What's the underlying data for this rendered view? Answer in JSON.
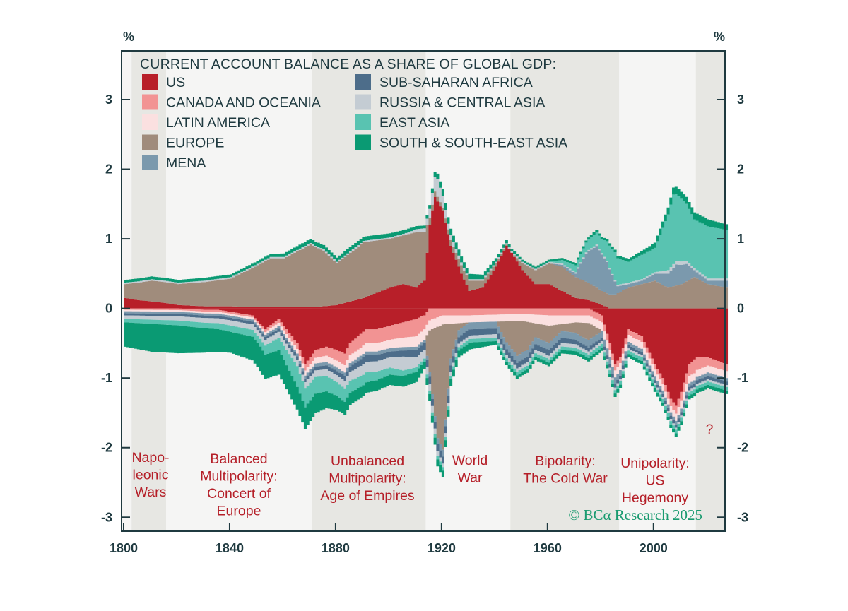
{
  "chart_data": {
    "type": "area",
    "title": "CURRENT ACCOUNT BALANCE AS A SHARE OF GLOBAL GDP:",
    "unit_left": "%",
    "unit_right": "%",
    "xlim": [
      1800,
      2027
    ],
    "ylim": [
      -3.2,
      3.7
    ],
    "x_ticks": [
      "1800",
      "1840",
      "1880",
      "1920",
      "1960",
      "2000"
    ],
    "x_tick_values": [
      1800,
      1840,
      1880,
      1920,
      1960,
      2000
    ],
    "y_ticks": [
      "3",
      "2",
      "1",
      "0",
      "-1",
      "-2",
      "-3"
    ],
    "y_tick_values": [
      3,
      2,
      1,
      0,
      -1,
      -2,
      -3
    ],
    "legend": [
      {
        "name": "US",
        "color": "#b81f29"
      },
      {
        "name": "CANADA AND OCEANIA",
        "color": "#f29393"
      },
      {
        "name": "LATIN AMERICA",
        "color": "#fbe0e0"
      },
      {
        "name": "EUROPE",
        "color": "#a08c7c"
      },
      {
        "name": "MENA",
        "color": "#7b99ad"
      },
      {
        "name": "SUB-SAHARAN AFRICA",
        "color": "#4d6d8a"
      },
      {
        "name": "RUSSIA & CENTRAL ASIA",
        "color": "#c4ccd3"
      },
      {
        "name": "EAST ASIA",
        "color": "#59c3b1"
      },
      {
        "name": "SOUTH & SOUTH-EAST ASIA",
        "color": "#0a9a73"
      }
    ],
    "eras": [
      {
        "lines": [
          "Napo-",
          "leonic",
          "Wars"
        ],
        "start": 1803,
        "end": 1816,
        "shade": true
      },
      {
        "lines": [
          "Balanced",
          "Multipolarity:",
          "Concert of",
          "Europe"
        ],
        "start": 1816,
        "end": 1871,
        "shade": false
      },
      {
        "lines": [
          "Unbalanced",
          "Multipolarity:",
          "Age of Empires"
        ],
        "start": 1871,
        "end": 1914,
        "shade": true
      },
      {
        "lines": [
          "World",
          "War"
        ],
        "start": 1914,
        "end": 1946,
        "shade": false
      },
      {
        "lines": [
          "Bipolarity:",
          "The Cold War"
        ],
        "start": 1946,
        "end": 1987,
        "shade": true
      },
      {
        "lines": [
          "Unipolarity:",
          "US",
          "Hegemony"
        ],
        "start": 1987,
        "end": 2016,
        "shade": false
      },
      {
        "lines": [
          "?"
        ],
        "start": 2016,
        "end": 2027,
        "shade": true
      }
    ],
    "positive_series": [
      {
        "name": "US",
        "color": "#b81f29",
        "x": [
          1800,
          1805,
          1810,
          1815,
          1820,
          1830,
          1840,
          1850,
          1860,
          1866,
          1872,
          1880,
          1890,
          1900,
          1905,
          1910,
          1913,
          1915,
          1917,
          1920,
          1923,
          1927,
          1930,
          1935,
          1940,
          1944,
          1946,
          1950,
          1955,
          1960,
          1965,
          1970,
          1975,
          1980,
          1983,
          2000,
          2027
        ],
        "values": [
          0.15,
          0.12,
          0.1,
          0.08,
          0.05,
          0.03,
          0.03,
          0.02,
          0.02,
          0.02,
          0.02,
          0.05,
          0.15,
          0.3,
          0.35,
          0.3,
          0.4,
          1.2,
          1.6,
          1.4,
          0.9,
          0.5,
          0.25,
          0.3,
          0.6,
          0.9,
          0.8,
          0.55,
          0.35,
          0.35,
          0.25,
          0.15,
          0.12,
          0.05,
          0,
          0,
          0
        ]
      },
      {
        "name": "EUROPE",
        "color": "#a08c7c",
        "x": [
          1800,
          1810,
          1820,
          1830,
          1840,
          1845,
          1850,
          1855,
          1860,
          1865,
          1870,
          1875,
          1880,
          1885,
          1890,
          1895,
          1900,
          1905,
          1910,
          1913,
          1915,
          1920,
          1925,
          1930,
          1935,
          1940,
          1946,
          1950,
          1955,
          1960,
          1965,
          1970,
          1975,
          1980,
          1985,
          1990,
          1995,
          2000,
          2005,
          2010,
          2015,
          2020,
          2027
        ],
        "values": [
          0.2,
          0.3,
          0.3,
          0.35,
          0.4,
          0.5,
          0.6,
          0.7,
          0.7,
          0.8,
          0.9,
          0.8,
          0.6,
          0.7,
          0.8,
          0.75,
          0.7,
          0.7,
          0.8,
          0.7,
          0.1,
          0.05,
          0.1,
          0.15,
          0.1,
          0.05,
          0,
          0.1,
          0.2,
          0.3,
          0.35,
          0.3,
          0.25,
          0.2,
          0.2,
          0.3,
          0.35,
          0.4,
          0.3,
          0.35,
          0.45,
          0.35,
          0.3
        ]
      },
      {
        "name": "MENA",
        "color": "#7b99ad",
        "x": [
          1800,
          1960,
          1970,
          1974,
          1978,
          1982,
          1986,
          1990,
          1995,
          2000,
          2005,
          2008,
          2012,
          2015,
          2020,
          2027
        ],
        "values": [
          0,
          0,
          0.05,
          0.4,
          0.6,
          0.45,
          0.1,
          0.05,
          0.05,
          0.1,
          0.2,
          0.3,
          0.25,
          0.1,
          0.05,
          0.1
        ]
      },
      {
        "name": "RUSSIA & CENTRAL ASIA",
        "color": "#c4ccd3",
        "x": [
          1800,
          1905,
          1913,
          1918,
          1922,
          1930,
          2000,
          2005,
          2010,
          2015,
          2027
        ],
        "values": [
          0.02,
          0.02,
          0.05,
          0.25,
          0.08,
          0.02,
          0.02,
          0.05,
          0.05,
          0.03,
          0.03
        ]
      },
      {
        "name": "EAST ASIA",
        "color": "#59c3b1",
        "x": [
          1800,
          1960,
          1970,
          1975,
          1980,
          1985,
          1990,
          1995,
          2000,
          2005,
          2007,
          2010,
          2015,
          2020,
          2027
        ],
        "values": [
          0,
          0,
          0.1,
          0.15,
          0.2,
          0.4,
          0.3,
          0.35,
          0.35,
          0.8,
          1.0,
          0.9,
          0.7,
          0.75,
          0.7
        ]
      },
      {
        "name": "SOUTH & SOUTH-EAST ASIA",
        "color": "#0a9a73",
        "x": [
          1800,
          1850,
          1870,
          1890,
          1900,
          1913,
          1920,
          1950,
          1980,
          1995,
          2005,
          2010,
          2020,
          2027
        ],
        "values": [
          0.04,
          0.04,
          0.06,
          0.06,
          0.06,
          0.04,
          0.1,
          0.03,
          0.03,
          0.05,
          0.1,
          0.1,
          0.1,
          0.08
        ]
      }
    ],
    "negative_series": [
      {
        "name": "US",
        "color": "#b81f29",
        "x": [
          1800,
          1820,
          1830,
          1835,
          1840,
          1848,
          1853,
          1858,
          1865,
          1868,
          1872,
          1876,
          1880,
          1883,
          1885,
          1888,
          1891,
          1895,
          1900,
          1905,
          1910,
          1913,
          1915,
          1920,
          1975,
          1980,
          1983,
          1985,
          1987,
          1990,
          1995,
          2000,
          2003,
          2006,
          2008,
          2010,
          2013,
          2016,
          2020,
          2027
        ],
        "values": [
          0,
          0,
          0.02,
          0.02,
          0.05,
          0.1,
          0.3,
          0.15,
          0.5,
          0.8,
          0.6,
          0.55,
          0.6,
          0.65,
          0.5,
          0.4,
          0.3,
          0.3,
          0.25,
          0.2,
          0.15,
          0.1,
          0,
          0,
          0,
          0.1,
          0.5,
          0.8,
          0.7,
          0.3,
          0.4,
          0.8,
          1.0,
          1.3,
          1.4,
          1.2,
          0.8,
          0.7,
          0.7,
          0.8
        ]
      },
      {
        "name": "CANADA AND OCEANIA",
        "color": "#f29393",
        "x": [
          1800,
          1850,
          1870,
          1880,
          1890,
          1900,
          1905,
          1910,
          1913,
          1920,
          1930,
          1950,
          1960,
          1980,
          1990,
          2000,
          2005,
          2010,
          2015,
          2020,
          2027
        ],
        "values": [
          0.02,
          0.03,
          0.1,
          0.15,
          0.2,
          0.2,
          0.22,
          0.25,
          0.2,
          0.1,
          0.1,
          0.08,
          0.1,
          0.1,
          0.08,
          0.08,
          0.1,
          0.12,
          0.2,
          0.12,
          0.1
        ]
      },
      {
        "name": "LATIN AMERICA",
        "color": "#fbe0e0",
        "x": [
          1800,
          1850,
          1880,
          1890,
          1900,
          1910,
          1913,
          1930,
          1950,
          1960,
          1970,
          1980,
          1985,
          1990,
          2000,
          2005,
          2010,
          2015,
          2020,
          2027
        ],
        "values": [
          0.02,
          0.03,
          0.1,
          0.12,
          0.12,
          0.15,
          0.15,
          0.1,
          0.1,
          0.15,
          0.1,
          0.12,
          0.1,
          0.1,
          0.1,
          0.08,
          0.12,
          0.1,
          0.1,
          0.1
        ]
      },
      {
        "name": "EUROPE",
        "color": "#a08c7c",
        "x": [
          1800,
          1913,
          1915,
          1918,
          1920,
          1923,
          1926,
          1930,
          1940,
          1944,
          1948,
          1952,
          1955,
          1960,
          1965,
          1970,
          1975,
          1980,
          2027
        ],
        "values": [
          0,
          0,
          0.6,
          1.6,
          1.8,
          0.5,
          0.1,
          0,
          0,
          0.3,
          0.5,
          0.4,
          0.2,
          0.25,
          0.1,
          0.15,
          0.25,
          0,
          0
        ]
      },
      {
        "name": "MENA",
        "color": "#7b99ad",
        "x": [
          1800,
          1850,
          1880,
          1900,
          1913,
          1920,
          1950,
          1970,
          1985,
          1990,
          2027
        ],
        "values": [
          0.03,
          0.03,
          0.05,
          0.05,
          0.05,
          0.1,
          0.1,
          0.1,
          0.1,
          0.05,
          0.05
        ]
      },
      {
        "name": "SUB-SAHARAN AFRICA",
        "color": "#4d6d8a",
        "x": [
          1800,
          1850,
          1880,
          1890,
          1900,
          1913,
          1920,
          1940,
          1960,
          1980,
          2000,
          2010,
          2027
        ],
        "values": [
          0.03,
          0.04,
          0.06,
          0.1,
          0.08,
          0.1,
          0.1,
          0.08,
          0.08,
          0.05,
          0.04,
          0.05,
          0.05
        ]
      },
      {
        "name": "RUSSIA & CENTRAL ASIA",
        "color": "#c4ccd3",
        "x": [
          1800,
          1850,
          1880,
          1890,
          1900,
          1905,
          1913,
          1920,
          1930,
          1950,
          1970,
          1990,
          2000,
          2027
        ],
        "values": [
          0.05,
          0.08,
          0.1,
          0.15,
          0.15,
          0.2,
          0.12,
          0.05,
          0.05,
          0.05,
          0.05,
          0.03,
          0.03,
          0.03
        ]
      },
      {
        "name": "EAST ASIA",
        "color": "#59c3b1",
        "x": [
          1800,
          1850,
          1860,
          1865,
          1870,
          1880,
          1890,
          1900,
          1913,
          1920,
          1950,
          1970,
          1990,
          2000,
          2027
        ],
        "values": [
          0.05,
          0.1,
          0.2,
          0.3,
          0.25,
          0.2,
          0.15,
          0.1,
          0.05,
          0.05,
          0.05,
          0.05,
          0.05,
          0.05,
          0.05
        ]
      },
      {
        "name": "SOUTH & SOUTH-EAST ASIA",
        "color": "#0a9a73",
        "x": [
          1800,
          1810,
          1820,
          1830,
          1840,
          1850,
          1860,
          1870,
          1880,
          1890,
          1900,
          1910,
          1913,
          1920,
          1930,
          1940,
          1950,
          1960,
          1970,
          1980,
          1990,
          2000,
          2010,
          2020,
          2027
        ],
        "values": [
          0.35,
          0.4,
          0.4,
          0.35,
          0.3,
          0.35,
          0.35,
          0.3,
          0.2,
          0.15,
          0.15,
          0.15,
          0.1,
          0.1,
          0.1,
          0.05,
          0.05,
          0.05,
          0.05,
          0.05,
          0.05,
          0.05,
          0.05,
          0.05,
          0.05
        ]
      }
    ]
  },
  "credit": "© BCα Research 2025"
}
